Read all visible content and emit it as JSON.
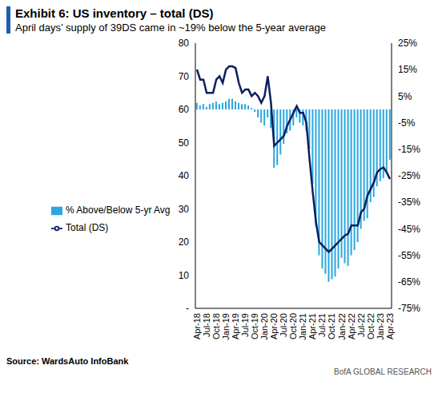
{
  "chart_data": {
    "type": "bar",
    "title": "Exhibit 6: US inventory – total (DS)",
    "subtitle": "April days’ supply of 39DS came in ~19% below the 5-year average",
    "source": "Source:  WardsAuto InfoBank",
    "footer": "BofA GLOBAL RESEARCH",
    "categories": [
      "Apr-18",
      null,
      null,
      "Jul-18",
      null,
      null,
      "Oct-18",
      null,
      null,
      "Jan-19",
      null,
      null,
      "Apr-19",
      null,
      null,
      "Jul-19",
      null,
      null,
      "Oct-19",
      null,
      null,
      "Jan-20",
      null,
      null,
      "Apr-20",
      null,
      null,
      "Jul-20",
      null,
      null,
      "Oct-20",
      null,
      null,
      "Jan-21",
      null,
      null,
      "Apr-21",
      null,
      null,
      "Jul-21",
      null,
      null,
      "Oct-21",
      null,
      null,
      "Jan-22",
      null,
      null,
      "Apr-22",
      null,
      null,
      "Jul-22",
      null,
      null,
      "Oct-22",
      null,
      null,
      "Jan-23",
      null,
      null,
      "Apr-23"
    ],
    "series": [
      {
        "name": "% Above/Below  5-yr Avg",
        "type": "bar",
        "axis": "y2",
        "color": "#2aa7df",
        "values": [
          2.5,
          1.5,
          2,
          1,
          2,
          2.5,
          3,
          2,
          2.5,
          3,
          4,
          4,
          3,
          2.5,
          2,
          2,
          1.5,
          0.5,
          -1,
          -3,
          -5,
          -6,
          -3,
          -7,
          -22,
          -21,
          -17,
          -13,
          -9,
          -8,
          -6,
          -3,
          -5,
          -6,
          -8,
          -15,
          -28,
          -44,
          -55,
          -60,
          -62,
          -65,
          -64,
          -63,
          -60,
          -56,
          -58,
          -59,
          -55,
          -53,
          -50,
          -45,
          -42,
          -41,
          -35,
          -33,
          -29,
          -27,
          -26,
          -24,
          -19
        ]
      },
      {
        "name": "Total (DS)",
        "type": "line",
        "color": "#0b1f5e",
        "values": [
          72,
          69,
          69,
          65,
          65,
          65,
          69,
          70,
          68,
          72,
          73,
          73,
          72.5,
          68,
          65,
          66,
          66,
          64,
          65,
          64,
          62,
          64,
          70,
          62,
          49,
          50,
          51,
          52,
          55,
          57,
          59,
          61,
          59,
          59,
          56,
          45,
          35,
          26,
          20,
          19,
          18,
          17,
          18,
          19,
          20,
          21,
          22,
          22.5,
          25,
          25,
          25,
          29,
          30,
          34,
          36,
          38,
          41,
          42,
          42.5,
          41,
          39
        ]
      }
    ],
    "ylim": [
      0,
      80
    ],
    "yticks": [
      {
        "value": 0,
        "label": "-"
      },
      10,
      20,
      30,
      40,
      50,
      60,
      70,
      80
    ],
    "y2lim": [
      -75,
      25
    ],
    "y2ticks": [
      {
        "value": -75,
        "label": "-75%"
      },
      {
        "value": -65,
        "label": "-65%"
      },
      {
        "value": -55,
        "label": "-55%"
      },
      {
        "value": -45,
        "label": "-45%"
      },
      {
        "value": -35,
        "label": "-35%"
      },
      {
        "value": -25,
        "label": "-25%"
      },
      {
        "value": -15,
        "label": "-15%"
      },
      {
        "value": -5,
        "label": "-5%"
      },
      {
        "value": 5,
        "label": "5%"
      },
      {
        "value": 15,
        "label": "15%"
      },
      {
        "value": 25,
        "label": "25%"
      }
    ],
    "grid": false,
    "legend": "left"
  }
}
